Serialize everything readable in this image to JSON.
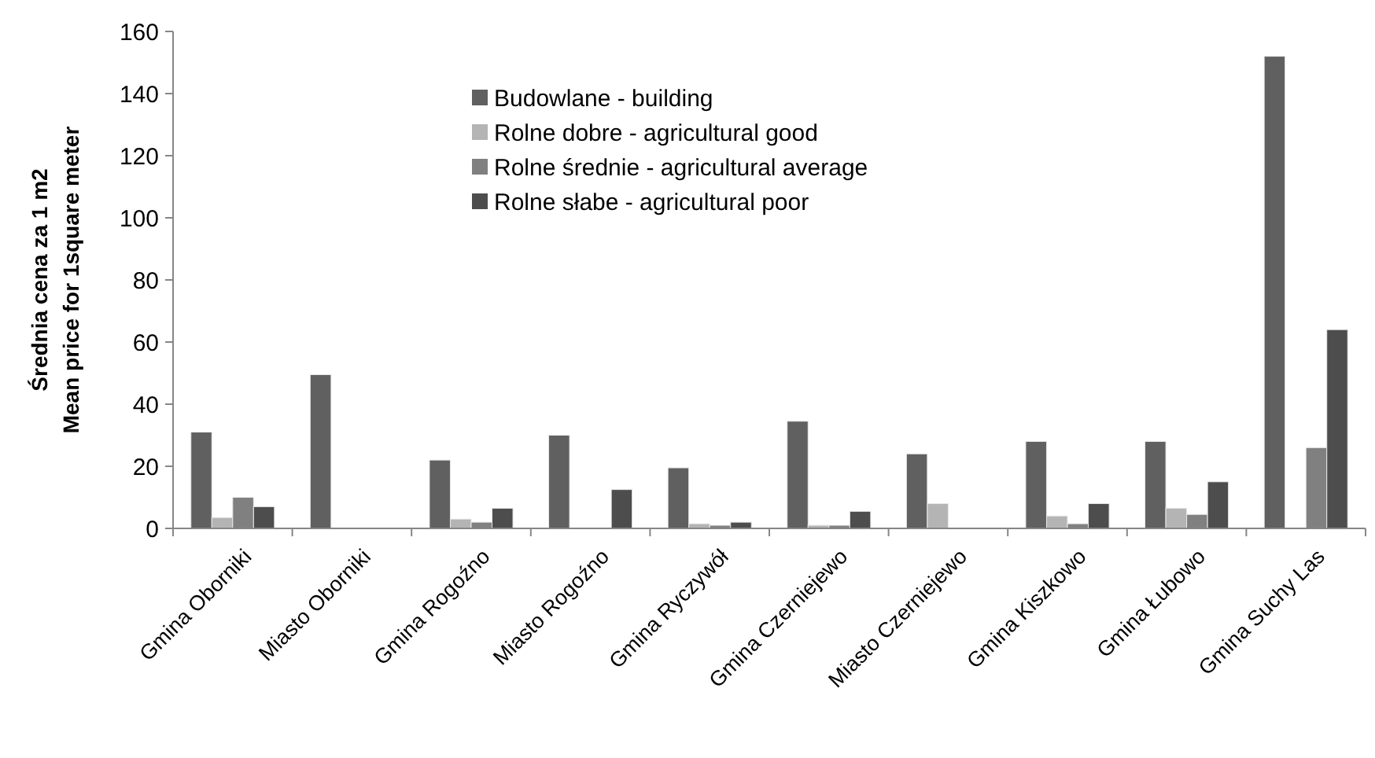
{
  "chart_data": {
    "type": "bar",
    "ylabel": "Średnia cena za 1 m2\nMean price for 1square meter",
    "categories": [
      "Gmina Oborniki",
      "Miasto Oborniki",
      "Gmina Rogoźno",
      "Miasto Rogoźno",
      "Gmina Ryczywół",
      "Gmina Czerniejewo",
      "Miasto Czerniejewo",
      "Gmina Kiszkowo",
      "Gmina Łubowo",
      "Gmina Suchy Las"
    ],
    "series": [
      {
        "name": "Budowlane - building",
        "color": "#606060",
        "values": [
          31,
          49.5,
          22,
          30,
          19.5,
          34.5,
          24,
          28,
          28,
          152
        ]
      },
      {
        "name": "Rolne dobre - agricultural good",
        "color": "#b4b4b4",
        "values": [
          3.5,
          0,
          3,
          0,
          1.5,
          1,
          8,
          4,
          6.5,
          0
        ]
      },
      {
        "name": "Rolne średnie - agricultural average",
        "color": "#808080",
        "values": [
          10,
          0,
          2,
          0,
          1,
          1,
          0,
          1.5,
          4.5,
          26
        ]
      },
      {
        "name": "Rolne słabe - agricultural poor",
        "color": "#4d4d4d",
        "values": [
          7,
          0,
          6.5,
          12.5,
          2,
          5.5,
          0,
          8,
          15,
          64
        ]
      }
    ],
    "ylim": [
      0,
      160
    ],
    "yticks": [
      0,
      20,
      40,
      60,
      80,
      100,
      120,
      140,
      160
    ],
    "grid": false,
    "legend": "top"
  }
}
